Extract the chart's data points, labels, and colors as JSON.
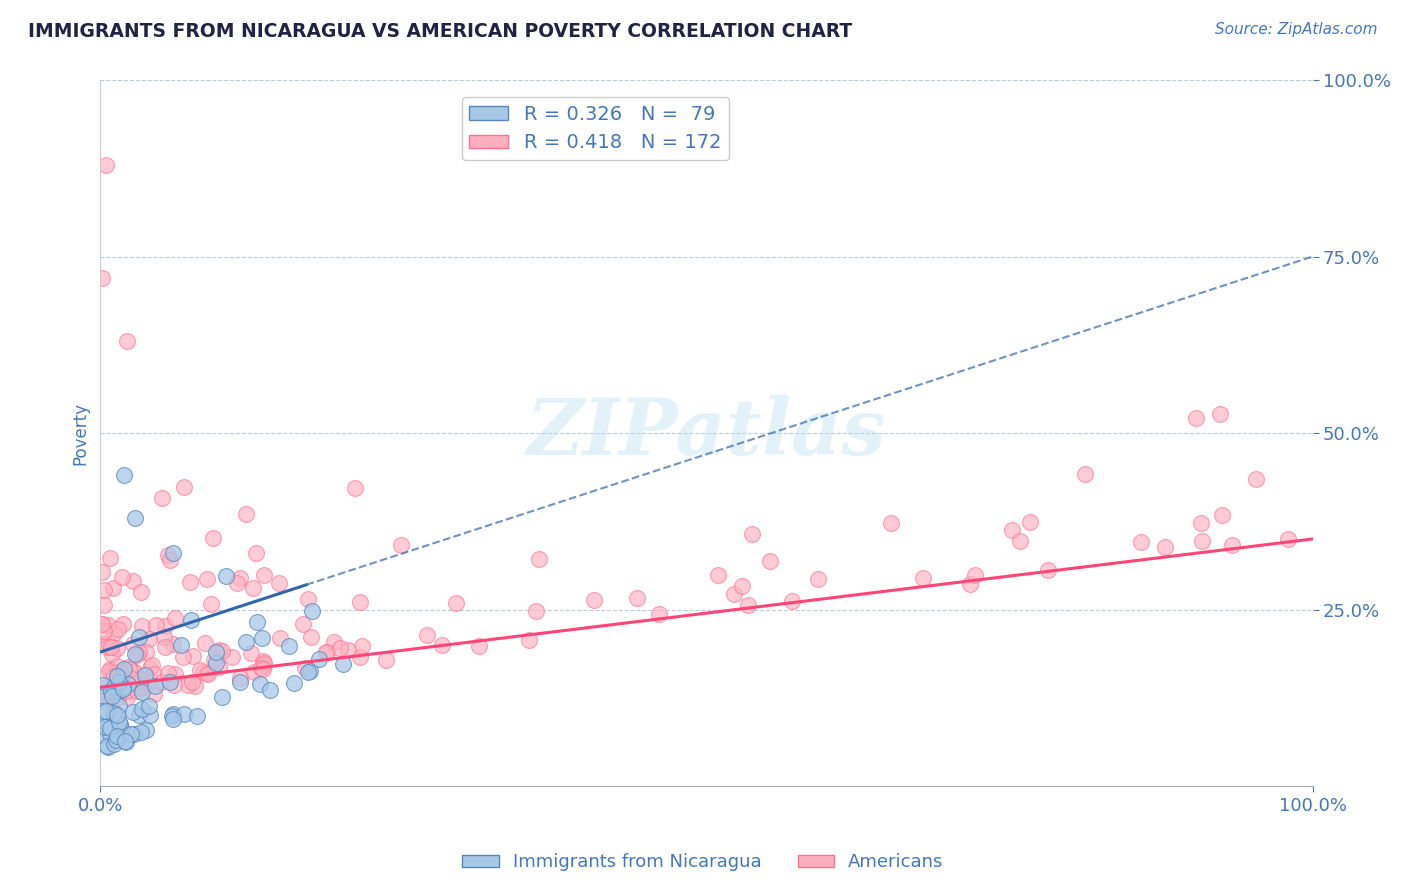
{
  "title": "IMMIGRANTS FROM NICARAGUA VS AMERICAN POVERTY CORRELATION CHART",
  "source_text": "Source: ZipAtlas.com",
  "ylabel": "Poverty",
  "xlim": [
    0,
    1
  ],
  "ylim": [
    0,
    1
  ],
  "xtick_labels": [
    "0.0%",
    "100.0%"
  ],
  "ytick_vals": [
    0.25,
    0.5,
    0.75,
    1.0
  ],
  "ytick_labels": [
    "25.0%",
    "50.0%",
    "75.0%",
    "100.0%"
  ],
  "watermark": "ZIPatlas",
  "legend_label1": "R = 0.326   N =  79",
  "legend_label2": "R = 0.418   N = 172",
  "color_blue_fill": "#A8C8E8",
  "color_blue_edge": "#5588BB",
  "color_pink_fill": "#FFB0C0",
  "color_pink_edge": "#FF7090",
  "color_blue_line": "#3366AA",
  "color_pink_line": "#FF4477",
  "color_text": "#4477BB",
  "color_grid": "#BBCCDD",
  "R1": 0.326,
  "N1": 79,
  "R2": 0.418,
  "N2": 172
}
